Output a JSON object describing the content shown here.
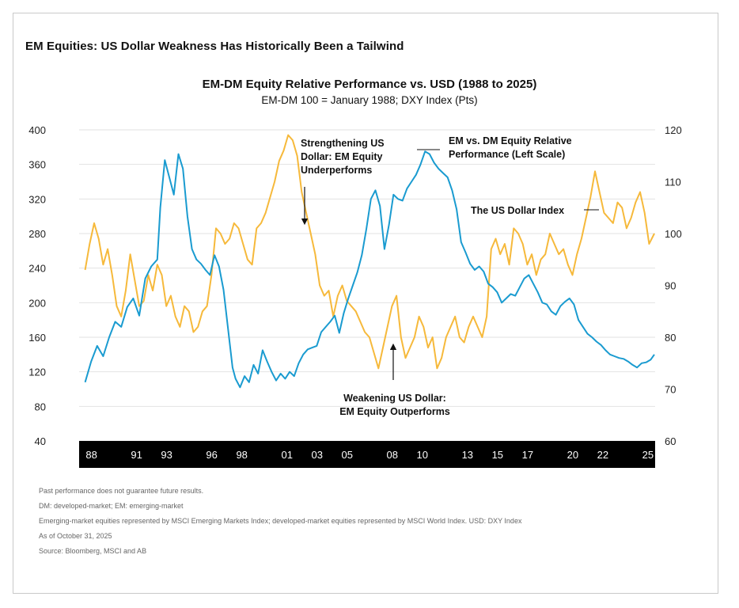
{
  "card": {
    "title": "EM Equities: US Dollar Weakness Has Historically Been a Tailwind"
  },
  "footnotes": [
    "Past performance does not guarantee future results.",
    "DM: developed-market; EM: emerging-market",
    "Emerging-market equities represented by MSCI Emerging Markets Index; developed-market equities represented by MSCI World Index. USD: DXY Index",
    "As of October 31, 2025",
    "Source: Bloomberg, MSCI and AB"
  ],
  "colors": {
    "em_dm": "#1a9bd0",
    "dxy": "#f6b93b",
    "axis_band": "#000000"
  },
  "chart_data": {
    "type": "line",
    "title": "EM-DM Equity Relative Performance vs. USD (1988 to 2025)",
    "subtitle": "EM-DM 100 = January 1988; DXY Index (Pts)",
    "x_tick_labels": [
      "88",
      "91",
      "93",
      "96",
      "98",
      "01",
      "03",
      "05",
      "08",
      "10",
      "13",
      "15",
      "17",
      "20",
      "22",
      "25"
    ],
    "x_tick_years": [
      1988,
      1991,
      1993,
      1996,
      1998,
      2001,
      2003,
      2005,
      2008,
      2010,
      2013,
      2015,
      2017,
      2020,
      2022,
      2025
    ],
    "xlim": [
      1987.6,
      2025.9
    ],
    "y_left": {
      "ticks": [
        40,
        80,
        120,
        160,
        200,
        240,
        280,
        320,
        360,
        400
      ],
      "lim": [
        40,
        400
      ]
    },
    "y_right": {
      "ticks": [
        60,
        70,
        80,
        90,
        100,
        110,
        120
      ],
      "lim": [
        60,
        120
      ]
    },
    "grid": true,
    "annotations": [
      {
        "lines": [
          "Strengthening US",
          "Dollar: EM Equity",
          "Underperforms"
        ]
      },
      {
        "lines": [
          "EM vs. DM Equity Relative",
          "Performance (Left Scale)"
        ]
      },
      {
        "lines": [
          "The US Dollar Index"
        ]
      },
      {
        "lines": [
          "Weakening US Dollar:",
          "EM Equity Outperforms"
        ]
      }
    ],
    "series": [
      {
        "key": "em_dm",
        "axis": "left",
        "x": [
          1988.0,
          1988.4,
          1988.8,
          1989.2,
          1989.6,
          1990.0,
          1990.4,
          1990.8,
          1991.2,
          1991.6,
          1992.0,
          1992.4,
          1992.8,
          1993.0,
          1993.3,
          1993.6,
          1993.9,
          1994.2,
          1994.5,
          1994.8,
          1995.1,
          1995.4,
          1995.7,
          1996.0,
          1996.3,
          1996.6,
          1996.9,
          1997.2,
          1997.5,
          1997.8,
          1998.0,
          1998.3,
          1998.6,
          1998.9,
          1999.2,
          1999.5,
          1999.8,
          2000.1,
          2000.4,
          2000.7,
          2001.0,
          2001.3,
          2001.6,
          2001.9,
          2002.2,
          2002.5,
          2002.8,
          2003.1,
          2003.4,
          2003.7,
          2004.0,
          2004.3,
          2004.6,
          2004.9,
          2005.2,
          2005.5,
          2005.8,
          2006.1,
          2006.4,
          2006.7,
          2007.0,
          2007.3,
          2007.6,
          2007.9,
          2008.2,
          2008.5,
          2008.8,
          2009.1,
          2009.4,
          2009.7,
          2010.0,
          2010.3,
          2010.6,
          2010.9,
          2011.2,
          2011.5,
          2011.8,
          2012.1,
          2012.4,
          2012.7,
          2013.0,
          2013.3,
          2013.6,
          2013.9,
          2014.2,
          2014.5,
          2014.8,
          2015.1,
          2015.4,
          2015.7,
          2016.0,
          2016.3,
          2016.6,
          2016.9,
          2017.2,
          2017.5,
          2017.8,
          2018.1,
          2018.4,
          2018.7,
          2019.0,
          2019.3,
          2019.6,
          2019.9,
          2020.2,
          2020.5,
          2020.8,
          2021.1,
          2021.4,
          2021.7,
          2022.0,
          2022.3,
          2022.6,
          2022.9,
          2023.2,
          2023.5,
          2023.8,
          2024.1,
          2024.4,
          2024.7,
          2025.0,
          2025.3,
          2025.6,
          2025.85
        ],
        "values": [
          108,
          132,
          150,
          138,
          160,
          178,
          172,
          195,
          205,
          185,
          228,
          242,
          250,
          310,
          365,
          345,
          325,
          372,
          355,
          300,
          262,
          250,
          245,
          238,
          232,
          255,
          242,
          215,
          170,
          125,
          112,
          102,
          115,
          108,
          128,
          118,
          145,
          132,
          120,
          110,
          118,
          112,
          120,
          115,
          130,
          140,
          146,
          148,
          150,
          166,
          172,
          178,
          185,
          165,
          188,
          205,
          220,
          235,
          255,
          285,
          320,
          330,
          312,
          262,
          290,
          325,
          320,
          318,
          332,
          340,
          348,
          360,
          375,
          372,
          362,
          355,
          350,
          345,
          330,
          308,
          270,
          258,
          245,
          238,
          242,
          236,
          222,
          218,
          212,
          200,
          205,
          210,
          208,
          218,
          228,
          232,
          222,
          212,
          200,
          198,
          190,
          186,
          196,
          201,
          205,
          198,
          180,
          172,
          164,
          160,
          155,
          151,
          145,
          140,
          138,
          136,
          135,
          132,
          128,
          125,
          130,
          131,
          134,
          140
        ]
      },
      {
        "key": "dxy",
        "axis": "right",
        "x": [
          1988.0,
          1988.3,
          1988.6,
          1988.9,
          1989.2,
          1989.5,
          1989.8,
          1990.1,
          1990.4,
          1990.7,
          1991.0,
          1991.3,
          1991.6,
          1991.9,
          1992.2,
          1992.5,
          1992.8,
          1993.1,
          1993.4,
          1993.7,
          1994.0,
          1994.3,
          1994.6,
          1994.9,
          1995.2,
          1995.5,
          1995.8,
          1996.1,
          1996.4,
          1996.7,
          1997.0,
          1997.3,
          1997.6,
          1997.9,
          1998.2,
          1998.5,
          1998.8,
          1999.1,
          1999.4,
          1999.7,
          2000.0,
          2000.3,
          2000.6,
          2000.9,
          2001.2,
          2001.5,
          2001.8,
          2002.1,
          2002.4,
          2002.7,
          2003.0,
          2003.3,
          2003.6,
          2003.9,
          2004.2,
          2004.5,
          2004.8,
          2005.1,
          2005.4,
          2005.7,
          2006.0,
          2006.3,
          2006.6,
          2006.9,
          2007.2,
          2007.5,
          2007.8,
          2008.1,
          2008.4,
          2008.7,
          2009.0,
          2009.3,
          2009.6,
          2009.9,
          2010.2,
          2010.5,
          2010.8,
          2011.1,
          2011.4,
          2011.7,
          2012.0,
          2012.3,
          2012.6,
          2012.9,
          2013.2,
          2013.5,
          2013.8,
          2014.1,
          2014.4,
          2014.7,
          2015.0,
          2015.3,
          2015.6,
          2015.9,
          2016.2,
          2016.5,
          2016.8,
          2017.1,
          2017.4,
          2017.7,
          2018.0,
          2018.3,
          2018.6,
          2018.9,
          2019.2,
          2019.5,
          2019.8,
          2020.1,
          2020.4,
          2020.7,
          2021.0,
          2021.3,
          2021.6,
          2021.9,
          2022.2,
          2022.5,
          2022.8,
          2023.1,
          2023.4,
          2023.7,
          2024.0,
          2024.3,
          2024.6,
          2024.9,
          2025.2,
          2025.5,
          2025.85
        ],
        "values": [
          93,
          98,
          102,
          99,
          94,
          97,
          92,
          86,
          84,
          89,
          96,
          91,
          86,
          87,
          92,
          89,
          94,
          92,
          86,
          88,
          84,
          82,
          86,
          85,
          81,
          82,
          85,
          86,
          92,
          101,
          100,
          98,
          99,
          102,
          101,
          98,
          95,
          94,
          101,
          102,
          104,
          107,
          110,
          114,
          116,
          119,
          118,
          115,
          108,
          104,
          100,
          96,
          90,
          88,
          89,
          84,
          88,
          90,
          87,
          86,
          85,
          83,
          81,
          80,
          77,
          74,
          78,
          82,
          86,
          88,
          80,
          76,
          78,
          80,
          84,
          82,
          78,
          80,
          74,
          76,
          80,
          82,
          84,
          80,
          79,
          82,
          84,
          82,
          80,
          84,
          97,
          99,
          96,
          98,
          94,
          101,
          100,
          98,
          94,
          96,
          92,
          95,
          96,
          100,
          98,
          96,
          97,
          94,
          92,
          96,
          99,
          103,
          107,
          112,
          108,
          104,
          103,
          102,
          106,
          105,
          101,
          103,
          106,
          108,
          104,
          98,
          100
        ]
      }
    ]
  }
}
